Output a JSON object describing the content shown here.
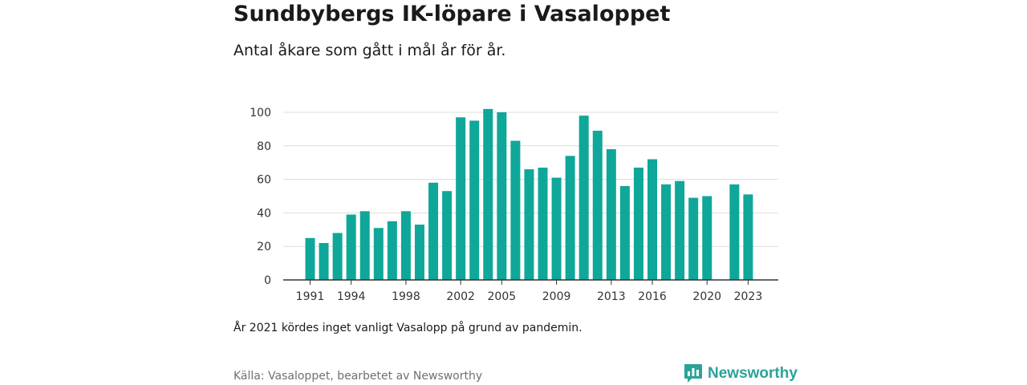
{
  "title": "Sundbybergs IK-löpare i Vasaloppet",
  "subtitle": "Antal åkare som gått i mål år för år.",
  "note": "År 2021 kördes inget vanligt Vasalopp på grund av pandemin.",
  "source": "Källa: Vasaloppet, bearbetet av Newsworthy",
  "brand": "Newsworthy",
  "colors": {
    "bar": "#0fa79a",
    "logo": "#2aa39a",
    "grid": "#dddddd",
    "axis": "#333333"
  },
  "chart_data": {
    "type": "bar",
    "categories": [
      1991,
      1992,
      1993,
      1994,
      1995,
      1996,
      1997,
      1998,
      1999,
      2000,
      2001,
      2002,
      2003,
      2004,
      2005,
      2006,
      2007,
      2008,
      2009,
      2010,
      2011,
      2012,
      2013,
      2014,
      2015,
      2016,
      2017,
      2018,
      2019,
      2020,
      2021,
      2022,
      2023
    ],
    "values": [
      25,
      22,
      28,
      39,
      41,
      31,
      35,
      41,
      33,
      58,
      53,
      97,
      95,
      102,
      100,
      83,
      66,
      67,
      61,
      74,
      98,
      89,
      78,
      56,
      67,
      72,
      57,
      59,
      49,
      50,
      null,
      57,
      51
    ],
    "x_tick_labels": [
      "1991",
      "1994",
      "1998",
      "2002",
      "2005",
      "2009",
      "2013",
      "2016",
      "2020",
      "2023"
    ],
    "y_ticks": [
      0,
      20,
      40,
      60,
      80,
      100
    ],
    "ylim": [
      0,
      104
    ],
    "grid": true,
    "legend": "none"
  }
}
